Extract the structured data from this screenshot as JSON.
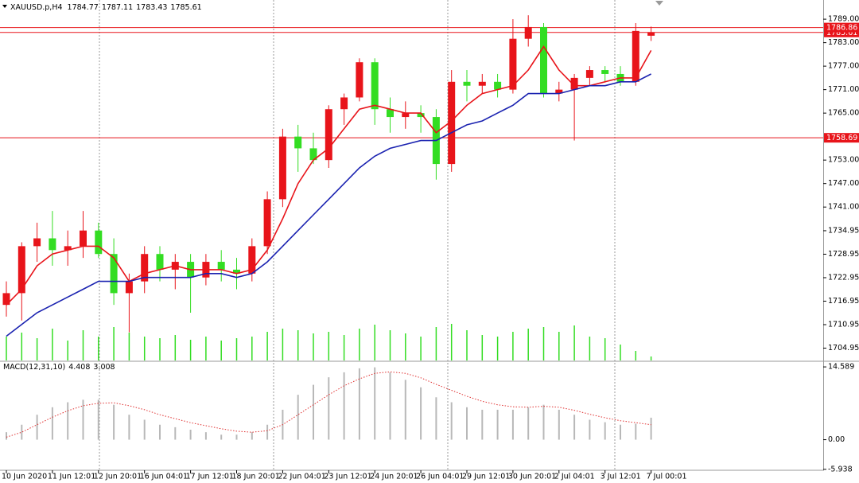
{
  "chart_data": {
    "type": "candlestick",
    "title": "XAUUSD.p,H4",
    "header_values": [
      1784.77,
      1787.11,
      1783.43,
      1785.61
    ],
    "categories": [
      "10 Jun 2020",
      null,
      null,
      "11 Jun 12:01",
      null,
      null,
      "12 Jun 20:01",
      null,
      null,
      "16 Jun 04:01",
      null,
      null,
      "17 Jun 12:01",
      null,
      null,
      "18 Jun 20:01",
      null,
      null,
      "22 Jun 04:01",
      null,
      null,
      "23 Jun 12:01",
      null,
      null,
      "24 Jun 20:01",
      null,
      null,
      "26 Jun 04:01",
      null,
      null,
      "29 Jun 12:01",
      null,
      null,
      "30 Jun 20:01",
      null,
      null,
      "2 Jul 04:01",
      null,
      null,
      "3 Jul 12:01",
      null,
      null,
      "7 Jul 00:01"
    ],
    "open": [
      1716,
      1719,
      1731,
      1733,
      1730,
      1731,
      1735,
      1729,
      1719,
      1722,
      1729,
      1725,
      1727,
      1723,
      1727,
      1725,
      1724,
      1731,
      1743,
      1759,
      1756,
      1753,
      1766,
      1769,
      1778,
      1766,
      1764,
      1765,
      1764,
      1752,
      1773,
      1772,
      1773,
      1771,
      1784,
      1787,
      1770,
      1771,
      1774,
      1776,
      1775,
      1773,
      1784.77
    ],
    "high": [
      1722,
      1732,
      1737,
      1740,
      1735,
      1740,
      1737,
      1733,
      1724,
      1731,
      1731,
      1729,
      1729,
      1729,
      1730,
      1728,
      1733,
      1745,
      1761,
      1762,
      1760,
      1767,
      1770,
      1779,
      1779,
      1769,
      1768,
      1767,
      1766,
      1776,
      1776,
      1775,
      1775,
      1789,
      1790,
      1788,
      1773,
      1775,
      1777,
      1777,
      1777,
      1788,
      1787.11
    ],
    "low": [
      1713,
      1712,
      1727,
      1726,
      1726,
      1728,
      1728,
      1716,
      1709,
      1719,
      1722,
      1720,
      1714,
      1721,
      1722,
      1720,
      1722,
      1729,
      1741,
      1750,
      1752,
      1751,
      1762,
      1768,
      1762,
      1760,
      1761,
      1760,
      1748,
      1750,
      1768,
      1770,
      1769,
      1770,
      1782,
      1769,
      1768,
      1758,
      1772,
      1773,
      1772,
      1772,
      1783.43
    ],
    "close": [
      1719,
      1731,
      1733,
      1730,
      1731,
      1735,
      1729,
      1719,
      1722,
      1729,
      1725,
      1727,
      1723,
      1727,
      1725,
      1724,
      1731,
      1743,
      1759,
      1756,
      1753,
      1766,
      1769,
      1778,
      1766,
      1764,
      1765,
      1764,
      1752,
      1773,
      1772,
      1773,
      1771,
      1784,
      1787,
      1770,
      1771,
      1774,
      1776,
      1775,
      1773,
      1786,
      1785.61
    ],
    "up_color": "#e8141a",
    "down_color": "#33dd22",
    "moving_averages": [
      {
        "color": "#e8141a",
        "values": [
          1716,
          1720,
          1726,
          1729,
          1730,
          1731,
          1731,
          1728,
          1722,
          1724,
          1725,
          1726,
          1725,
          1725,
          1725,
          1724,
          1725,
          1730,
          1738,
          1747,
          1753,
          1756,
          1761,
          1766,
          1767,
          1766,
          1765,
          1765,
          1760,
          1763,
          1767,
          1770,
          1771,
          1772,
          1776,
          1782,
          1776,
          1772,
          1772,
          1773,
          1774,
          1774,
          1781
        ]
      },
      {
        "color": "#1a22b0",
        "values": [
          1708,
          1711,
          1714,
          1716,
          1718,
          1720,
          1722,
          1722,
          1722,
          1723,
          1723,
          1723,
          1723,
          1724,
          1724,
          1723,
          1724,
          1727,
          1731,
          1735,
          1739,
          1743,
          1747,
          1751,
          1754,
          1756,
          1757,
          1758,
          1758,
          1760,
          1762,
          1763,
          1765,
          1767,
          1770,
          1770,
          1770,
          1771,
          1772,
          1772,
          1773,
          1773,
          1775
        ]
      }
    ],
    "volume": {
      "color": "#33dd22",
      "ylim": [
        0,
        60
      ],
      "values": [
        30,
        35,
        28,
        40,
        25,
        38,
        30,
        42,
        35,
        30,
        28,
        32,
        26,
        30,
        25,
        28,
        30,
        36,
        40,
        38,
        34,
        36,
        32,
        40,
        45,
        38,
        34,
        30,
        42,
        46,
        38,
        32,
        30,
        36,
        40,
        42,
        36,
        44,
        30,
        28,
        20,
        12,
        5
      ]
    },
    "ylim": [
      1701.8,
      1793.9
    ],
    "yticks": [
      {
        "value": 1789,
        "label": "1789.00"
      },
      {
        "value": 1783,
        "label": "1783.00"
      },
      {
        "value": 1777,
        "label": "1777.00"
      },
      {
        "value": 1771,
        "label": "1771.00"
      },
      {
        "value": 1765,
        "label": "1765.00"
      },
      {
        "value": 1753,
        "label": "1753.00"
      },
      {
        "value": 1747,
        "label": "1747.00"
      },
      {
        "value": 1741,
        "label": "1741.00"
      },
      1734.95,
      1728.95,
      1722.95,
      1716.95,
      1710.95,
      1704.95
    ],
    "price_lines": [
      1785.61,
      1786.86,
      1758.69
    ],
    "price_line_color": "#e8141a",
    "macd": {
      "title": "MACD(12,31,10)",
      "ylim": [
        -6.45,
        15.56
      ],
      "yticks": [
        14.589,
        {
          "value": 0,
          "label": "0.00"
        },
        -5.938
      ],
      "histogram": {
        "color": "#b8b8b8",
        "values": [
          1.5,
          3,
          5,
          6.5,
          7.5,
          8,
          8,
          7,
          5,
          4,
          3,
          2.5,
          2,
          1.5,
          1,
          1,
          1.5,
          3,
          6,
          9,
          11,
          12.5,
          13.5,
          14.3,
          14.5,
          13.5,
          12,
          10.5,
          8.5,
          7.5,
          6.5,
          6,
          6,
          6,
          6.5,
          7,
          6,
          5,
          4,
          3.5,
          3,
          3.2,
          4.408
        ]
      },
      "signal": {
        "color": "#e03030",
        "values": [
          0.5,
          1.5,
          3,
          4.5,
          5.8,
          6.8,
          7.3,
          7.4,
          6.8,
          6,
          5,
          4.2,
          3.4,
          2.8,
          2.2,
          1.7,
          1.5,
          1.8,
          3,
          5,
          7,
          9,
          10.8,
          12.2,
          13.3,
          13.6,
          13.3,
          12.4,
          11.1,
          9.9,
          8.7,
          7.7,
          7,
          6.6,
          6.5,
          6.7,
          6.5,
          5.9,
          5.1,
          4.4,
          3.8,
          3.4,
          3.008
        ]
      }
    }
  }
}
